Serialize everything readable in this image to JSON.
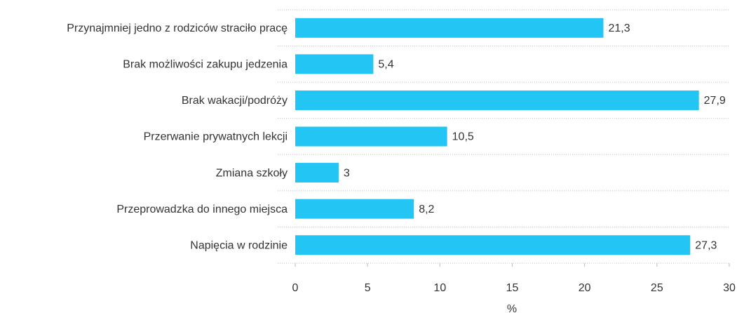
{
  "chart_data": {
    "type": "hbar",
    "categories": [
      "Przynajmniej jedno z rodziców straciło pracę",
      "Brak możliwości zakupu jedzenia",
      "Brak wakacji/podróży",
      "Przerwanie prywatnych lekcji",
      "Zmiana szkoły",
      "Przeprowadzka do innego miejsca",
      "Napięcia w rodzinie"
    ],
    "values": [
      21.3,
      5.4,
      27.9,
      10.5,
      3,
      8.2,
      27.3
    ],
    "value_labels": [
      "21,3",
      "5,4",
      "27,9",
      "10,5",
      "3",
      "8,2",
      "27,3"
    ],
    "color": "#22c5f3",
    "xlabel": "%",
    "xlim": [
      0,
      30
    ],
    "xticks": [
      0,
      5,
      10,
      15,
      20,
      25,
      30
    ]
  }
}
